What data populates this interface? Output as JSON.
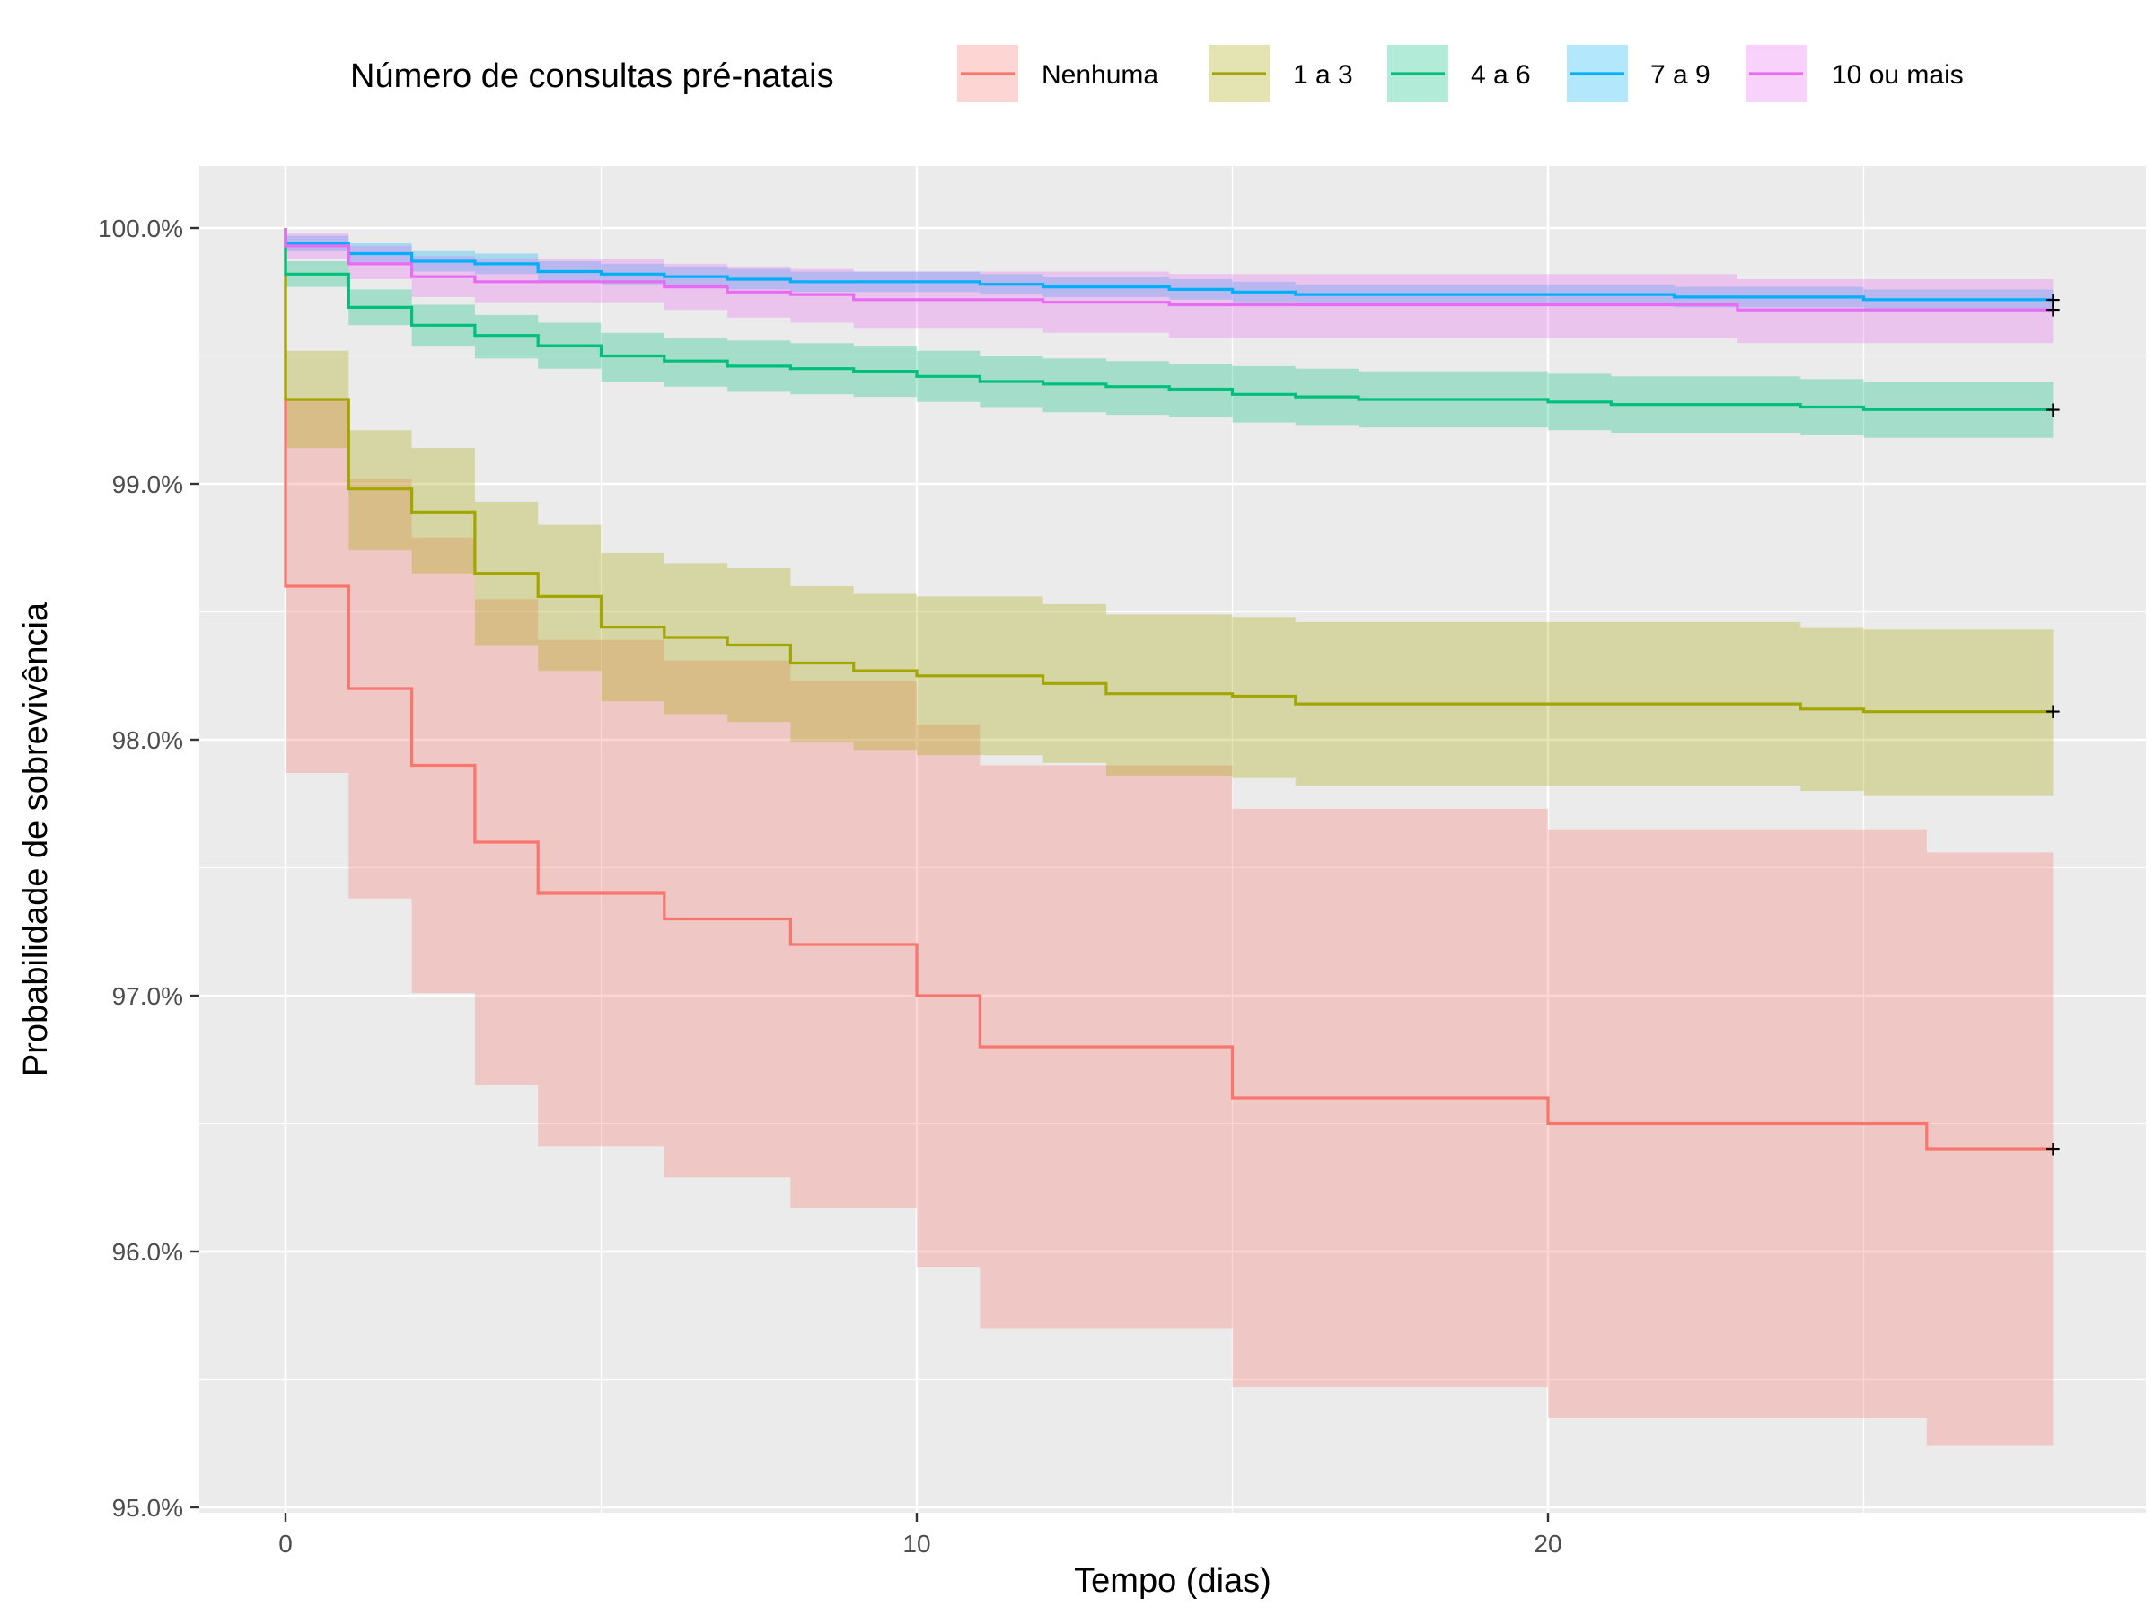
{
  "chart_data": {
    "type": "line",
    "subtype": "kaplan-meier step survival curves with confidence bands",
    "xlabel": "Tempo (dias)",
    "ylabel": "Probabilidade de sobrevivência",
    "legend_title": "Número de consultas pré-natais",
    "legend_position": "top",
    "xlim": [
      0,
      28
    ],
    "ylim": [
      95.0,
      100.0
    ],
    "x_ticks": [
      0,
      10,
      20
    ],
    "x_tick_labels": [
      "0",
      "10",
      "20"
    ],
    "y_ticks": [
      95,
      96,
      97,
      98,
      99,
      100
    ],
    "y_tick_labels": [
      "95.0%",
      "96.0%",
      "97.0%",
      "98.0%",
      "99.0%",
      "100.0%"
    ],
    "grid": true,
    "censor_marker": "+",
    "series": [
      {
        "name": "Nenhuma",
        "color": "#F8766D",
        "points": [
          [
            0,
            100
          ],
          [
            0,
            98.6
          ],
          [
            1,
            98.2
          ],
          [
            2,
            97.9
          ],
          [
            3,
            97.6
          ],
          [
            4,
            97.4
          ],
          [
            6,
            97.3
          ],
          [
            8,
            97.2
          ],
          [
            10,
            97.0
          ],
          [
            11,
            96.8
          ],
          [
            15,
            96.6
          ],
          [
            20,
            96.5
          ],
          [
            26,
            96.4
          ],
          [
            28,
            96.4
          ]
        ],
        "lower": [
          [
            0,
            97.87
          ],
          [
            1,
            97.38
          ],
          [
            2,
            97.01
          ],
          [
            3,
            96.65
          ],
          [
            4,
            96.41
          ],
          [
            6,
            96.29
          ],
          [
            8,
            96.17
          ],
          [
            10,
            95.94
          ],
          [
            11,
            95.7
          ],
          [
            15,
            95.47
          ],
          [
            20,
            95.35
          ],
          [
            26,
            95.24
          ],
          [
            28,
            95.24
          ]
        ],
        "upper": [
          [
            0,
            99.33
          ],
          [
            1,
            99.02
          ],
          [
            2,
            98.79
          ],
          [
            3,
            98.55
          ],
          [
            4,
            98.39
          ],
          [
            6,
            98.31
          ],
          [
            8,
            98.23
          ],
          [
            10,
            98.06
          ],
          [
            11,
            97.9
          ],
          [
            15,
            97.73
          ],
          [
            20,
            97.65
          ],
          [
            26,
            97.56
          ],
          [
            28,
            97.56
          ]
        ]
      },
      {
        "name": "1 a 3",
        "color": "#A3A500",
        "points": [
          [
            0,
            100
          ],
          [
            0,
            99.33
          ],
          [
            1,
            98.98
          ],
          [
            2,
            98.89
          ],
          [
            3,
            98.65
          ],
          [
            4,
            98.56
          ],
          [
            5,
            98.44
          ],
          [
            6,
            98.4
          ],
          [
            7,
            98.37
          ],
          [
            8,
            98.3
          ],
          [
            9,
            98.27
          ],
          [
            10,
            98.25
          ],
          [
            12,
            98.22
          ],
          [
            13,
            98.18
          ],
          [
            15,
            98.17
          ],
          [
            16,
            98.14
          ],
          [
            24,
            98.12
          ],
          [
            25,
            98.11
          ],
          [
            28,
            98.11
          ]
        ],
        "lower": [
          [
            0,
            99.14
          ],
          [
            1,
            98.74
          ],
          [
            2,
            98.65
          ],
          [
            3,
            98.37
          ],
          [
            4,
            98.27
          ],
          [
            5,
            98.15
          ],
          [
            6,
            98.1
          ],
          [
            7,
            98.07
          ],
          [
            8,
            97.99
          ],
          [
            9,
            97.96
          ],
          [
            10,
            97.94
          ],
          [
            12,
            97.91
          ],
          [
            13,
            97.86
          ],
          [
            15,
            97.85
          ],
          [
            16,
            97.82
          ],
          [
            24,
            97.8
          ],
          [
            25,
            97.78
          ],
          [
            28,
            97.78
          ]
        ],
        "upper": [
          [
            0,
            99.52
          ],
          [
            1,
            99.21
          ],
          [
            2,
            99.14
          ],
          [
            3,
            98.93
          ],
          [
            4,
            98.84
          ],
          [
            5,
            98.73
          ],
          [
            6,
            98.69
          ],
          [
            7,
            98.67
          ],
          [
            8,
            98.6
          ],
          [
            9,
            98.57
          ],
          [
            10,
            98.56
          ],
          [
            12,
            98.53
          ],
          [
            13,
            98.49
          ],
          [
            15,
            98.48
          ],
          [
            16,
            98.46
          ],
          [
            24,
            98.44
          ],
          [
            25,
            98.43
          ],
          [
            28,
            98.43
          ]
        ]
      },
      {
        "name": "4 a 6",
        "color": "#00BF7D",
        "points": [
          [
            0,
            100
          ],
          [
            0,
            99.82
          ],
          [
            1,
            99.69
          ],
          [
            2,
            99.62
          ],
          [
            3,
            99.58
          ],
          [
            4,
            99.54
          ],
          [
            5,
            99.5
          ],
          [
            6,
            99.48
          ],
          [
            7,
            99.46
          ],
          [
            8,
            99.45
          ],
          [
            9,
            99.44
          ],
          [
            10,
            99.42
          ],
          [
            11,
            99.4
          ],
          [
            12,
            99.39
          ],
          [
            13,
            99.38
          ],
          [
            14,
            99.37
          ],
          [
            15,
            99.35
          ],
          [
            16,
            99.34
          ],
          [
            17,
            99.33
          ],
          [
            20,
            99.32
          ],
          [
            21,
            99.31
          ],
          [
            24,
            99.3
          ],
          [
            25,
            99.29
          ],
          [
            28,
            99.29
          ]
        ],
        "lower": [
          [
            0,
            99.77
          ],
          [
            1,
            99.62
          ],
          [
            2,
            99.54
          ],
          [
            3,
            99.49
          ],
          [
            4,
            99.45
          ],
          [
            5,
            99.4
          ],
          [
            6,
            99.38
          ],
          [
            7,
            99.36
          ],
          [
            8,
            99.35
          ],
          [
            9,
            99.34
          ],
          [
            10,
            99.32
          ],
          [
            11,
            99.3
          ],
          [
            12,
            99.28
          ],
          [
            13,
            99.27
          ],
          [
            14,
            99.26
          ],
          [
            15,
            99.24
          ],
          [
            16,
            99.23
          ],
          [
            17,
            99.22
          ],
          [
            20,
            99.21
          ],
          [
            21,
            99.2
          ],
          [
            24,
            99.19
          ],
          [
            25,
            99.18
          ],
          [
            28,
            99.18
          ]
        ],
        "upper": [
          [
            0,
            99.87
          ],
          [
            1,
            99.76
          ],
          [
            2,
            99.7
          ],
          [
            3,
            99.66
          ],
          [
            4,
            99.63
          ],
          [
            5,
            99.59
          ],
          [
            6,
            99.57
          ],
          [
            7,
            99.56
          ],
          [
            8,
            99.55
          ],
          [
            9,
            99.54
          ],
          [
            10,
            99.52
          ],
          [
            11,
            99.5
          ],
          [
            12,
            99.49
          ],
          [
            13,
            99.48
          ],
          [
            14,
            99.47
          ],
          [
            15,
            99.46
          ],
          [
            16,
            99.45
          ],
          [
            17,
            99.44
          ],
          [
            20,
            99.43
          ],
          [
            21,
            99.42
          ],
          [
            24,
            99.41
          ],
          [
            25,
            99.4
          ],
          [
            28,
            99.4
          ]
        ]
      },
      {
        "name": "7 a 9",
        "color": "#00B0F6",
        "points": [
          [
            0,
            100
          ],
          [
            0,
            99.94
          ],
          [
            1,
            99.9
          ],
          [
            2,
            99.87
          ],
          [
            3,
            99.86
          ],
          [
            4,
            99.83
          ],
          [
            5,
            99.82
          ],
          [
            6,
            99.81
          ],
          [
            7,
            99.8
          ],
          [
            8,
            99.79
          ],
          [
            9,
            99.79
          ],
          [
            11,
            99.78
          ],
          [
            12,
            99.77
          ],
          [
            14,
            99.76
          ],
          [
            15,
            99.75
          ],
          [
            16,
            99.74
          ],
          [
            20,
            99.74
          ],
          [
            22,
            99.73
          ],
          [
            24,
            99.73
          ],
          [
            25,
            99.72
          ],
          [
            28,
            99.72
          ]
        ],
        "lower": [
          [
            0,
            99.91
          ],
          [
            1,
            99.86
          ],
          [
            2,
            99.83
          ],
          [
            3,
            99.82
          ],
          [
            4,
            99.79
          ],
          [
            5,
            99.78
          ],
          [
            6,
            99.77
          ],
          [
            7,
            99.76
          ],
          [
            8,
            99.75
          ],
          [
            9,
            99.75
          ],
          [
            11,
            99.74
          ],
          [
            12,
            99.73
          ],
          [
            14,
            99.72
          ],
          [
            15,
            99.71
          ],
          [
            16,
            99.7
          ],
          [
            20,
            99.7
          ],
          [
            22,
            99.69
          ],
          [
            24,
            99.69
          ],
          [
            25,
            99.68
          ],
          [
            28,
            99.68
          ]
        ],
        "upper": [
          [
            0,
            99.97
          ],
          [
            1,
            99.94
          ],
          [
            2,
            99.91
          ],
          [
            3,
            99.9
          ],
          [
            4,
            99.87
          ],
          [
            5,
            99.86
          ],
          [
            6,
            99.85
          ],
          [
            7,
            99.84
          ],
          [
            8,
            99.83
          ],
          [
            9,
            99.83
          ],
          [
            11,
            99.82
          ],
          [
            12,
            99.81
          ],
          [
            14,
            99.8
          ],
          [
            15,
            99.79
          ],
          [
            16,
            99.78
          ],
          [
            20,
            99.78
          ],
          [
            22,
            99.77
          ],
          [
            24,
            99.77
          ],
          [
            25,
            99.76
          ],
          [
            28,
            99.76
          ]
        ]
      },
      {
        "name": "10 ou mais",
        "color": "#E76BF3",
        "points": [
          [
            0,
            100
          ],
          [
            0,
            99.93
          ],
          [
            1,
            99.86
          ],
          [
            2,
            99.81
          ],
          [
            3,
            99.79
          ],
          [
            6,
            99.77
          ],
          [
            7,
            99.75
          ],
          [
            8,
            99.74
          ],
          [
            9,
            99.72
          ],
          [
            12,
            99.71
          ],
          [
            14,
            99.7
          ],
          [
            20,
            99.7
          ],
          [
            23,
            99.68
          ],
          [
            28,
            99.68
          ]
        ],
        "lower": [
          [
            0,
            99.88
          ],
          [
            1,
            99.8
          ],
          [
            2,
            99.73
          ],
          [
            3,
            99.71
          ],
          [
            6,
            99.68
          ],
          [
            7,
            99.65
          ],
          [
            8,
            99.63
          ],
          [
            9,
            99.61
          ],
          [
            12,
            99.59
          ],
          [
            14,
            99.57
          ],
          [
            20,
            99.57
          ],
          [
            23,
            99.55
          ],
          [
            28,
            99.55
          ]
        ],
        "upper": [
          [
            0,
            99.98
          ],
          [
            1,
            99.93
          ],
          [
            2,
            99.89
          ],
          [
            3,
            99.88
          ],
          [
            6,
            99.86
          ],
          [
            7,
            99.85
          ],
          [
            8,
            99.84
          ],
          [
            9,
            99.83
          ],
          [
            12,
            99.83
          ],
          [
            14,
            99.82
          ],
          [
            20,
            99.82
          ],
          [
            23,
            99.8
          ],
          [
            28,
            99.8
          ]
        ]
      }
    ]
  }
}
